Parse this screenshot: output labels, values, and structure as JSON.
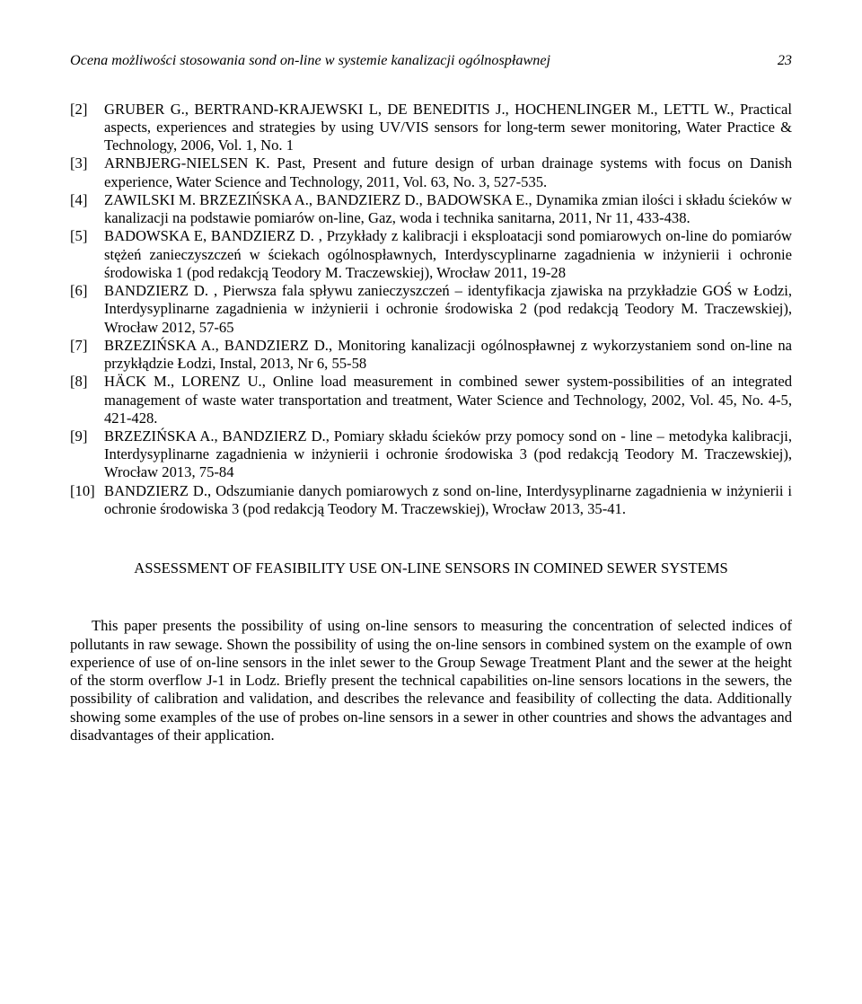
{
  "header": {
    "title": "Ocena możliwości stosowania sond on-line w systemie kanalizacji ogólnospławnej",
    "page": "23"
  },
  "references": [
    {
      "num": "[2]",
      "text": "GRUBER G., BERTRAND-KRAJEWSKI L, DE BENEDITIS J., HOCHENLINGER M., LETTL W., Practical aspects, experiences and strategies by using UV/VIS sensors for long-term sewer monitoring, Water Practice & Technology, 2006, Vol. 1, No. 1"
    },
    {
      "num": "[3]",
      "text": "ARNBJERG-NIELSEN K. Past, Present and future design of urban drainage systems with focus on Danish experience, Water Science and Technology, 2011, Vol. 63, No. 3, 527-535."
    },
    {
      "num": "[4]",
      "text": "ZAWILSKI M. BRZEZIŃSKA A., BANDZIERZ D., BADOWSKA E., Dynamika zmian ilości i składu ścieków w kanalizacji na podstawie pomiarów on-line, Gaz, woda i technika sanitarna, 2011, Nr 11, 433-438."
    },
    {
      "num": "[5]",
      "text": "BADOWSKA E, BANDZIERZ D. , Przykłady z kalibracji i eksploatacji sond pomiarowych on-line do pomiarów stężeń zanieczyszczeń w ściekach ogólnospławnych, Interdyscyplinarne zagadnienia w inżynierii i ochronie środowiska 1 (pod redakcją Teodory M. Traczewskiej), Wrocław 2011, 19-28"
    },
    {
      "num": "[6]",
      "text": "BANDZIERZ D. , Pierwsza fala spływu zanieczyszczeń – identyfikacja zjawiska na przykładzie GOŚ w Łodzi, Interdysyplinarne zagadnienia w inżynierii i ochronie środowiska 2 (pod redakcją Teodory M. Traczewskiej), Wrocław 2012, 57-65"
    },
    {
      "num": "[7]",
      "text": "BRZEZIŃSKA A., BANDZIERZ D., Monitoring kanalizacji ogólnospławnej z wykorzystaniem sond on-line na przykłądzie Łodzi, Instal, 2013, Nr 6, 55-58"
    },
    {
      "num": "[8]",
      "text": "HÄCK M., LORENZ U., Online load measurement in combined sewer system-possibilities of an integrated management of waste water transportation and treatment, Water Science and Technology, 2002, Vol. 45, No. 4-5, 421-428."
    },
    {
      "num": "[9]",
      "text": "BRZEZIŃSKA A., BANDZIERZ D., Pomiary składu ścieków przy pomocy sond on - line – metodyka kalibracji, Interdysyplinarne zagadnienia w inżynierii i ochronie środowiska 3 (pod redakcją Teodory M. Traczewskiej), Wrocław 2013, 75-84"
    },
    {
      "num": "[10]",
      "text": "BANDZIERZ D., Odszumianie danych pomiarowych z sond on-line, Interdysyplinarne zagadnienia w inżynierii i ochronie środowiska 3 (pod redakcją Teodory M. Traczewskiej), Wrocław 2013, 35-41."
    }
  ],
  "section_title": "ASSESSMENT OF FEASIBILITY USE ON-LINE SENSORS IN COMINED SEWER SYSTEMS",
  "abstract": "This paper presents the possibility of using on-line sensors to measuring the concentration of selected indices of pollutants in raw sewage. Shown the possibility of using the on-line sensors in combined system on the example of own experience of use of on-line sensors in the inlet sewer to the Group Sewage Treatment Plant and the sewer at the height of the storm overflow J-1 in Lodz. Briefly present the technical capabilities on-line sensors locations in the sewers, the possibility of calibration and validation, and describes the relevance and feasibility of collecting the data. Additionally showing some examples of the use of probes on-line sensors in a sewer in other countries and shows the advantages and disadvantages of their application."
}
